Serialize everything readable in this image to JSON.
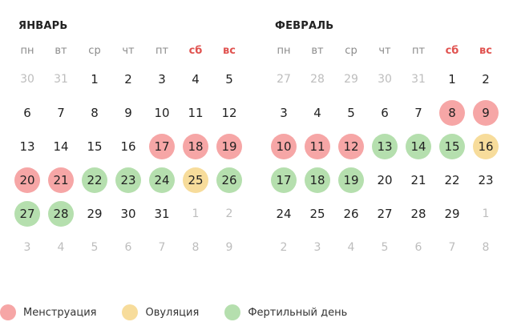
{
  "colors": {
    "menstruation": "#f6a6a6",
    "ovulation": "#f7dc9b",
    "fertile": "#b5dfae",
    "weekend": "#e0524f",
    "muted": "#bdbdbd"
  },
  "weekdays": [
    "пн",
    "вт",
    "ср",
    "чт",
    "пт",
    "сб",
    "вс"
  ],
  "months": [
    {
      "title": "ЯНВАРЬ",
      "weeks": [
        [
          {
            "d": "30",
            "other": true
          },
          {
            "d": "31",
            "other": true
          },
          {
            "d": "1"
          },
          {
            "d": "2"
          },
          {
            "d": "3"
          },
          {
            "d": "4"
          },
          {
            "d": "5"
          }
        ],
        [
          {
            "d": "6"
          },
          {
            "d": "7"
          },
          {
            "d": "8"
          },
          {
            "d": "9"
          },
          {
            "d": "10"
          },
          {
            "d": "11"
          },
          {
            "d": "12"
          }
        ],
        [
          {
            "d": "13"
          },
          {
            "d": "14"
          },
          {
            "d": "15"
          },
          {
            "d": "16"
          },
          {
            "d": "17",
            "m": "menstruation"
          },
          {
            "d": "18",
            "m": "menstruation"
          },
          {
            "d": "19",
            "m": "menstruation"
          }
        ],
        [
          {
            "d": "20",
            "m": "menstruation"
          },
          {
            "d": "21",
            "m": "menstruation"
          },
          {
            "d": "22",
            "m": "fertile"
          },
          {
            "d": "23",
            "m": "fertile"
          },
          {
            "d": "24",
            "m": "fertile"
          },
          {
            "d": "25",
            "m": "ovulation"
          },
          {
            "d": "26",
            "m": "fertile"
          }
        ],
        [
          {
            "d": "27",
            "m": "fertile"
          },
          {
            "d": "28",
            "m": "fertile"
          },
          {
            "d": "29"
          },
          {
            "d": "30"
          },
          {
            "d": "31"
          },
          {
            "d": "1",
            "other": true
          },
          {
            "d": "2",
            "other": true
          }
        ],
        [
          {
            "d": "3",
            "other": true
          },
          {
            "d": "4",
            "other": true
          },
          {
            "d": "5",
            "other": true
          },
          {
            "d": "6",
            "other": true
          },
          {
            "d": "7",
            "other": true
          },
          {
            "d": "8",
            "other": true
          },
          {
            "d": "9",
            "other": true
          }
        ]
      ]
    },
    {
      "title": "ФЕВРАЛЬ",
      "weeks": [
        [
          {
            "d": "27",
            "other": true
          },
          {
            "d": "28",
            "other": true
          },
          {
            "d": "29",
            "other": true
          },
          {
            "d": "30",
            "other": true
          },
          {
            "d": "31",
            "other": true
          },
          {
            "d": "1"
          },
          {
            "d": "2"
          }
        ],
        [
          {
            "d": "3"
          },
          {
            "d": "4"
          },
          {
            "d": "5"
          },
          {
            "d": "6"
          },
          {
            "d": "7"
          },
          {
            "d": "8",
            "m": "menstruation"
          },
          {
            "d": "9",
            "m": "menstruation"
          }
        ],
        [
          {
            "d": "10",
            "m": "menstruation"
          },
          {
            "d": "11",
            "m": "menstruation"
          },
          {
            "d": "12",
            "m": "menstruation"
          },
          {
            "d": "13",
            "m": "fertile"
          },
          {
            "d": "14",
            "m": "fertile"
          },
          {
            "d": "15",
            "m": "fertile"
          },
          {
            "d": "16",
            "m": "ovulation"
          }
        ],
        [
          {
            "d": "17",
            "m": "fertile"
          },
          {
            "d": "18",
            "m": "fertile"
          },
          {
            "d": "19",
            "m": "fertile"
          },
          {
            "d": "20"
          },
          {
            "d": "21"
          },
          {
            "d": "22"
          },
          {
            "d": "23"
          }
        ],
        [
          {
            "d": "24"
          },
          {
            "d": "25"
          },
          {
            "d": "26"
          },
          {
            "d": "27"
          },
          {
            "d": "28"
          },
          {
            "d": "29"
          },
          {
            "d": "1",
            "other": true
          }
        ],
        [
          {
            "d": "2",
            "other": true
          },
          {
            "d": "3",
            "other": true
          },
          {
            "d": "4",
            "other": true
          },
          {
            "d": "5",
            "other": true
          },
          {
            "d": "6",
            "other": true
          },
          {
            "d": "7",
            "other": true
          },
          {
            "d": "8",
            "other": true
          }
        ]
      ]
    }
  ],
  "legend": {
    "menstruation": "Менструация",
    "ovulation": "Овуляция",
    "fertile": "Фертильный день"
  }
}
